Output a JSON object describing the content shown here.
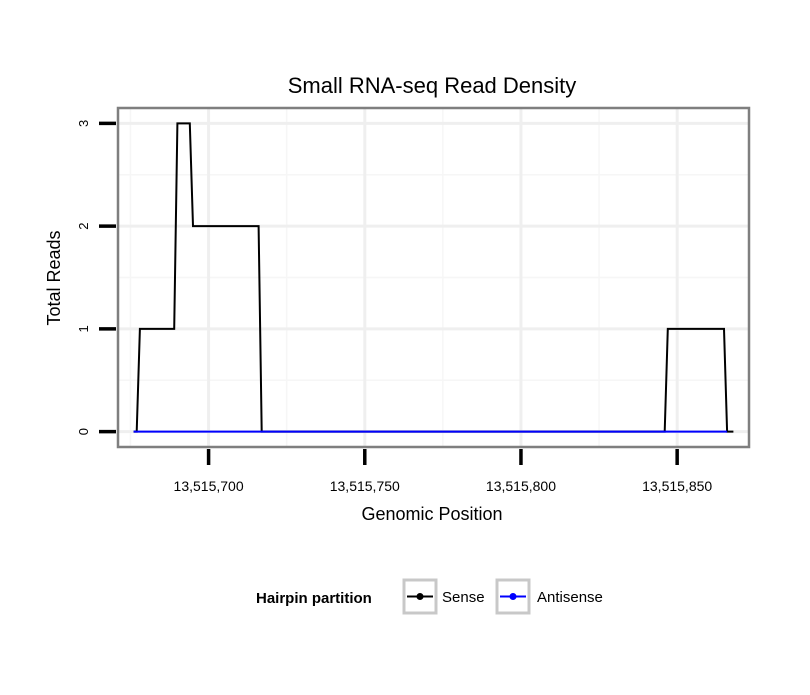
{
  "chart_data": {
    "type": "line",
    "title": "Small RNA-seq Read Density",
    "xlabel": "Genomic Position",
    "ylabel": "Total Reads",
    "xlim": [
      13515671,
      13515873
    ],
    "ylim": [
      -0.15,
      3.15
    ],
    "x_ticks": [
      13515700,
      13515750,
      13515800,
      13515850
    ],
    "x_tick_labels": [
      "13,515,700",
      "13,515,750",
      "13,515,800",
      "13,515,850"
    ],
    "y_ticks": [
      0,
      1,
      2,
      3
    ],
    "y_tick_labels": [
      "0",
      "1",
      "2",
      "3"
    ],
    "x_minor_grid": [
      13515675,
      13515725,
      13515775,
      13515825,
      13515875
    ],
    "y_minor_grid": [
      0.5,
      1.5,
      2.5
    ],
    "grid": true,
    "legend": {
      "title": "Hairpin partition",
      "position": "bottom",
      "entries": [
        {
          "name": "Sense",
          "color": "#000000"
        },
        {
          "name": "Antisense",
          "color": "#0000ff"
        }
      ]
    },
    "series": [
      {
        "name": "Sense",
        "color": "#000000",
        "x": [
          13515676,
          13515677,
          13515678,
          13515689,
          13515690,
          13515694,
          13515695,
          13515699,
          13515716,
          13515717,
          13515846,
          13515847,
          13515865,
          13515866,
          13515868
        ],
        "y": [
          0,
          0,
          1,
          1,
          3,
          3,
          2,
          2,
          2,
          0,
          0,
          1,
          1,
          0,
          0
        ]
      },
      {
        "name": "Antisense",
        "color": "#0000ff",
        "x": [
          13515676,
          13515716,
          13515846,
          13515866
        ],
        "y": [
          0,
          0,
          0,
          0
        ]
      }
    ]
  }
}
